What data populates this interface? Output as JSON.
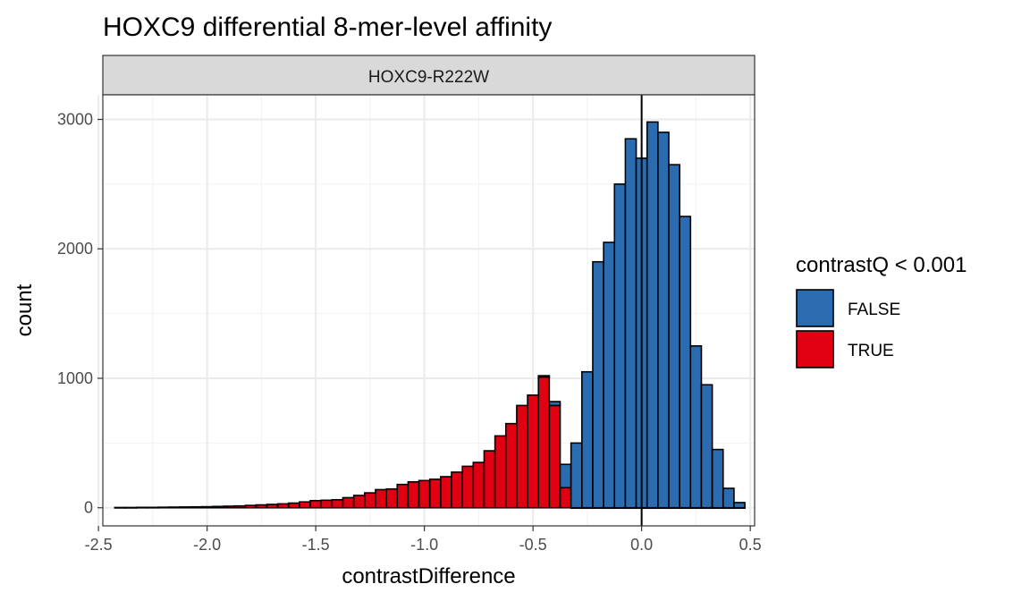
{
  "chart_data": {
    "type": "bar",
    "title": "HOXC9 differential 8-mer-level affinity",
    "facet": "HOXC9-R222W",
    "xlabel": "contrastDifference",
    "ylabel": "count",
    "xlim": [
      -2.48,
      0.52
    ],
    "ylim": [
      -140,
      3190
    ],
    "x_ticks": [
      -2.5,
      -2.0,
      -1.5,
      -1.0,
      -0.5,
      0.0,
      0.5
    ],
    "x_tick_labels": [
      "-2.5",
      "-2.0",
      "-1.5",
      "-1.0",
      "-0.5",
      "0.0",
      "0.5"
    ],
    "y_ticks": [
      0,
      1000,
      2000,
      3000
    ],
    "y_tick_labels": [
      "0",
      "1000",
      "2000",
      "3000"
    ],
    "grid": true,
    "vline_x": 0,
    "bin_width": 0.05,
    "bins": [
      -2.4,
      -2.35,
      -2.3,
      -2.25,
      -2.2,
      -2.15,
      -2.1,
      -2.05,
      -2.0,
      -1.95,
      -1.9,
      -1.85,
      -1.8,
      -1.75,
      -1.7,
      -1.65,
      -1.6,
      -1.55,
      -1.5,
      -1.45,
      -1.4,
      -1.35,
      -1.3,
      -1.25,
      -1.2,
      -1.15,
      -1.1,
      -1.05,
      -1.0,
      -0.95,
      -0.9,
      -0.85,
      -0.8,
      -0.75,
      -0.7,
      -0.65,
      -0.6,
      -0.55,
      -0.5,
      -0.45,
      -0.4,
      -0.35,
      -0.3,
      -0.25,
      -0.2,
      -0.15,
      -0.1,
      -0.05,
      0.0,
      0.05,
      0.1,
      0.15,
      0.2,
      0.25,
      0.3,
      0.35,
      0.4,
      0.45
    ],
    "series": [
      {
        "name": "TRUE",
        "color": "#e00012",
        "values": [
          2,
          2,
          3,
          3,
          4,
          5,
          6,
          7,
          8,
          10,
          12,
          14,
          18,
          22,
          26,
          30,
          36,
          45,
          55,
          58,
          62,
          78,
          95,
          115,
          140,
          145,
          180,
          200,
          210,
          220,
          240,
          275,
          320,
          350,
          440,
          555,
          650,
          790,
          870,
          1010,
          790,
          155,
          0,
          0,
          0,
          0,
          0,
          0,
          0,
          0,
          0,
          0,
          0,
          0,
          0,
          0,
          0,
          0
        ]
      },
      {
        "name": "FALSE",
        "color": "#2b6cb0",
        "values": [
          0,
          0,
          0,
          0,
          0,
          0,
          0,
          0,
          0,
          0,
          0,
          0,
          0,
          0,
          0,
          0,
          0,
          0,
          0,
          0,
          0,
          0,
          0,
          0,
          0,
          0,
          0,
          0,
          0,
          0,
          0,
          0,
          0,
          0,
          0,
          0,
          0,
          0,
          0,
          10,
          30,
          180,
          500,
          1050,
          1900,
          2050,
          2500,
          2850,
          2700,
          2980,
          2900,
          2650,
          2250,
          1250,
          950,
          450,
          150,
          40
        ]
      }
    ],
    "legend": {
      "title": "contrastQ < 0.001",
      "position": "right",
      "entries": [
        {
          "label": "FALSE",
          "color": "#2b6cb0"
        },
        {
          "label": "TRUE",
          "color": "#e00012"
        }
      ]
    }
  }
}
